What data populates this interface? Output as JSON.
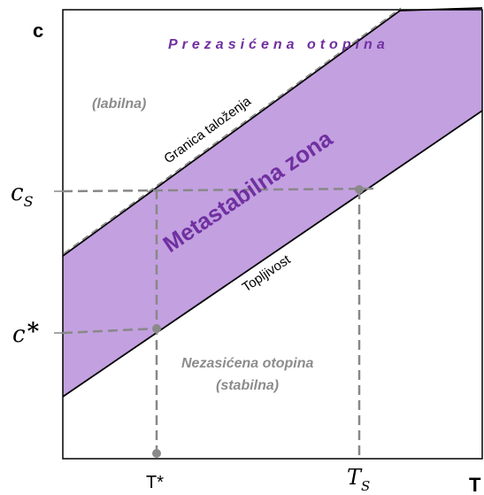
{
  "axes": {
    "y_label": "c",
    "x_label": "T",
    "y_ticks": [
      {
        "main": "c",
        "sub": "S"
      },
      {
        "main": "c",
        "sup": "*"
      }
    ],
    "x_ticks": [
      {
        "main": "T",
        "sup": "*"
      },
      {
        "main": "T",
        "sub": "S"
      }
    ]
  },
  "labels": {
    "supersaturated": "Prezasićena otopina",
    "labile": "(labilna)",
    "precipitation_limit": "Granica taloženja",
    "metastable_zone": "Metastabilna zona",
    "solubility": "Topljivost",
    "unsaturated": "Nezasićena otopina",
    "stable": "(stabilna)"
  },
  "colors": {
    "metastable_fill": "#c3a0e0",
    "accent_purple": "#7030a0",
    "gray_text": "#8c8c8c",
    "dashed_line": "#888888",
    "axis": "#000000"
  }
}
